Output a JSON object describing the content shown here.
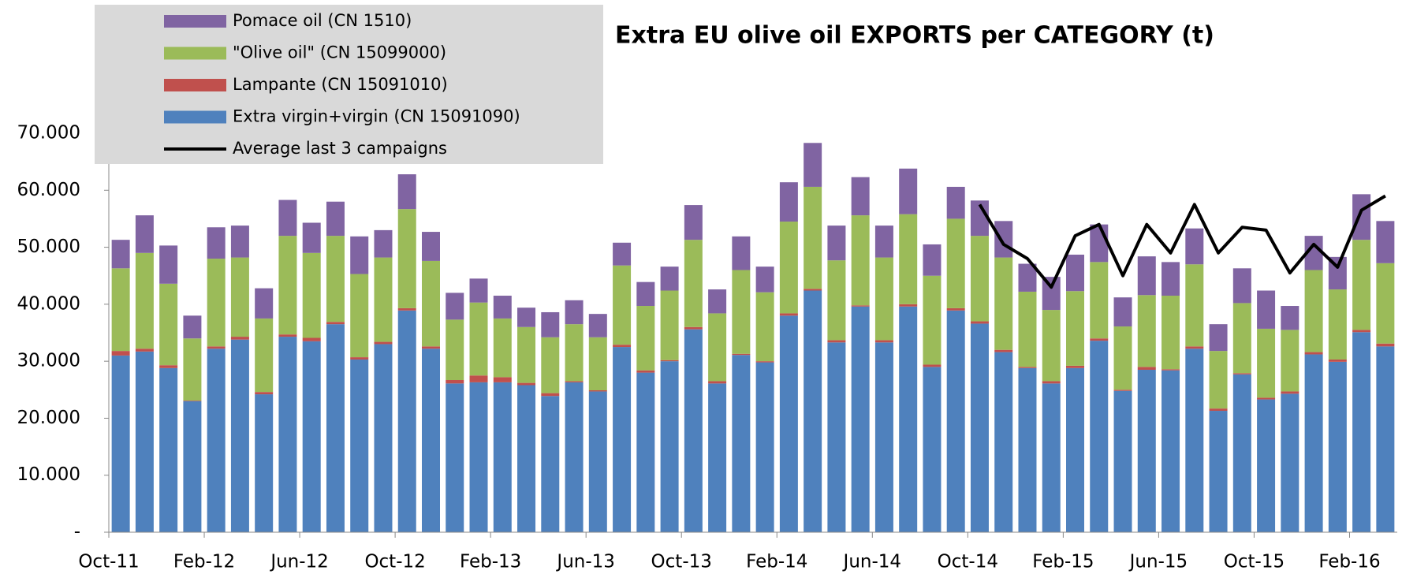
{
  "chart_data": {
    "type": "bar",
    "stacked": true,
    "title": "Extra EU olive oil EXPORTS per CATEGORY (t)",
    "categories": [
      "Oct-11",
      null,
      null,
      null,
      "Feb-12",
      null,
      null,
      null,
      "Jun-12",
      null,
      null,
      null,
      "Oct-12",
      null,
      null,
      null,
      "Feb-13",
      null,
      null,
      null,
      "Jun-13",
      null,
      null,
      null,
      "Oct-13",
      null,
      null,
      null,
      "Feb-14",
      null,
      null,
      null,
      "Jun-14",
      null,
      null,
      null,
      "Oct-14",
      null,
      null,
      null,
      "Feb-15",
      null,
      null,
      null,
      "Jun-15",
      null,
      null,
      null,
      "Oct-15",
      null,
      null,
      null,
      "Feb-16",
      null
    ],
    "series": [
      {
        "name": "Extra virgin+virgin (CN 15091090)",
        "color": "#4f81bd",
        "values": [
          31000,
          31700,
          28800,
          23000,
          32200,
          33800,
          24200,
          34300,
          33500,
          36500,
          30300,
          33000,
          38900,
          32200,
          26100,
          26300,
          26300,
          25800,
          23900,
          26300,
          24700,
          32500,
          28000,
          30000,
          35600,
          26100,
          31100,
          29800,
          38000,
          42400,
          33300,
          39600,
          33300,
          39600,
          29000,
          38900,
          36600,
          31600,
          28800,
          26100,
          28800,
          33600,
          24800,
          28500,
          28400,
          32200,
          21300,
          27700,
          23300,
          24300,
          31200,
          29900,
          35100,
          32600
        ]
      },
      {
        "name": "Lampante (CN 15091010)",
        "color": "#c0504d",
        "values": [
          800,
          500,
          500,
          100,
          400,
          500,
          400,
          400,
          600,
          400,
          400,
          400,
          400,
          400,
          600,
          1200,
          900,
          400,
          500,
          200,
          200,
          400,
          400,
          200,
          400,
          400,
          200,
          200,
          400,
          300,
          400,
          200,
          400,
          400,
          400,
          400,
          400,
          400,
          200,
          400,
          400,
          400,
          200,
          500,
          200,
          400,
          400,
          200,
          300,
          400,
          400,
          400,
          400,
          500
        ]
      },
      {
        "name": "\"Olive oil\" (CN 15099000)",
        "color": "#9bbb59",
        "values": [
          14500,
          16800,
          14300,
          10900,
          15400,
          13900,
          12900,
          17300,
          14900,
          15100,
          14600,
          14800,
          17400,
          15000,
          10600,
          12800,
          10300,
          9800,
          9800,
          10000,
          9300,
          13900,
          11300,
          12200,
          15300,
          11900,
          14700,
          12100,
          16100,
          17900,
          14000,
          15800,
          14500,
          15800,
          15600,
          15700,
          15000,
          16200,
          13200,
          12500,
          13100,
          13400,
          11100,
          12600,
          12900,
          14400,
          10100,
          12300,
          12100,
          10800,
          14400,
          12300,
          15800,
          14100
        ]
      },
      {
        "name": "Pomace oil (CN 1510)",
        "color": "#8064a2",
        "values": [
          5000,
          6600,
          6700,
          4000,
          5500,
          5600,
          5300,
          6300,
          5300,
          6000,
          6600,
          4800,
          6100,
          5100,
          4700,
          4200,
          4000,
          3400,
          4400,
          4200,
          4100,
          4000,
          4200,
          4200,
          6100,
          4200,
          5900,
          4500,
          6900,
          7700,
          6100,
          6700,
          5600,
          8000,
          5500,
          5600,
          6200,
          6400,
          4900,
          5800,
          6400,
          6600,
          5100,
          6800,
          5900,
          6300,
          4700,
          6100,
          6700,
          4200,
          6000,
          5700,
          8000,
          7400
        ]
      },
      {
        "name": "Average last 3 campaigns",
        "type": "line",
        "color": "#000000",
        "values": [
          null,
          null,
          null,
          null,
          null,
          null,
          null,
          null,
          null,
          null,
          null,
          null,
          null,
          null,
          null,
          null,
          null,
          null,
          null,
          null,
          null,
          null,
          null,
          null,
          null,
          null,
          null,
          null,
          null,
          null,
          null,
          null,
          null,
          null,
          null,
          null,
          57500,
          50500,
          48000,
          43000,
          52000,
          54000,
          45000,
          54000,
          49000,
          57500,
          49000,
          53500,
          53000,
          45500,
          50500,
          46500,
          56500,
          59000
        ]
      }
    ],
    "ylim": [
      0,
      70000
    ],
    "yticks": [
      {
        "value": 0,
        "label": "-"
      },
      {
        "value": 10000,
        "label": "10.000"
      },
      {
        "value": 20000,
        "label": "20.000"
      },
      {
        "value": 30000,
        "label": "30.000"
      },
      {
        "value": 40000,
        "label": "40.000"
      },
      {
        "value": 50000,
        "label": "50.000"
      },
      {
        "value": 60000,
        "label": "60.000"
      },
      {
        "value": 70000,
        "label": "70.000"
      }
    ],
    "grid": false
  }
}
